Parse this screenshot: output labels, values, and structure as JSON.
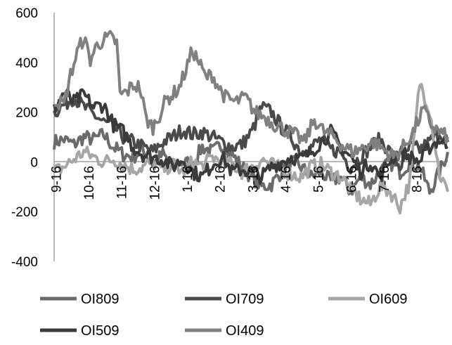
{
  "chart_data": {
    "type": "line",
    "title": "",
    "xlabel": "",
    "ylabel": "",
    "ylim": [
      -400,
      600
    ],
    "yticks": [
      600,
      400,
      200,
      0,
      -200,
      -400
    ],
    "grid": false,
    "legend_placement": "bottom",
    "xtick_labels": [
      "9-16",
      "10-16",
      "11-16",
      "12-16",
      "1-16",
      "2-16",
      "3-16",
      "4-16",
      "5-16",
      "6-16",
      "7-16",
      "8-16"
    ],
    "x_points": 240,
    "series": [
      {
        "name": "OI809",
        "color": "#6b6b6b",
        "values": [
          [
            0,
            80
          ],
          [
            6,
            90
          ],
          [
            12,
            70
          ],
          [
            18,
            100
          ],
          [
            24,
            90
          ],
          [
            30,
            110
          ],
          [
            36,
            60
          ],
          [
            42,
            30
          ],
          [
            48,
            20
          ],
          [
            54,
            50
          ],
          [
            60,
            -10
          ],
          [
            66,
            30
          ],
          [
            72,
            -20
          ],
          [
            78,
            0
          ],
          [
            84,
            -10
          ],
          [
            90,
            60
          ],
          [
            96,
            40
          ],
          [
            102,
            70
          ],
          [
            108,
            30
          ],
          [
            114,
            -20
          ],
          [
            120,
            -60
          ],
          [
            126,
            -100
          ],
          [
            132,
            -90
          ],
          [
            138,
            -40
          ],
          [
            144,
            0
          ],
          [
            150,
            -20
          ],
          [
            156,
            -60
          ],
          [
            162,
            -40
          ],
          [
            168,
            -80
          ],
          [
            174,
            -60
          ],
          [
            180,
            -120
          ],
          [
            186,
            -60
          ],
          [
            192,
            -90
          ],
          [
            198,
            -40
          ],
          [
            204,
            0
          ],
          [
            210,
            -40
          ],
          [
            216,
            0
          ],
          [
            222,
            -20
          ],
          [
            228,
            -120
          ],
          [
            234,
            -40
          ],
          [
            239,
            40
          ]
        ]
      },
      {
        "name": "OI709",
        "color": "#4a4a4a",
        "values": [
          [
            0,
            200
          ],
          [
            6,
            230
          ],
          [
            12,
            260
          ],
          [
            18,
            220
          ],
          [
            24,
            190
          ],
          [
            30,
            160
          ],
          [
            36,
            140
          ],
          [
            42,
            100
          ],
          [
            48,
            80
          ],
          [
            54,
            60
          ],
          [
            60,
            40
          ],
          [
            66,
            80
          ],
          [
            72,
            100
          ],
          [
            78,
            130
          ],
          [
            84,
            110
          ],
          [
            90,
            120
          ],
          [
            96,
            100
          ],
          [
            102,
            80
          ],
          [
            108,
            60
          ],
          [
            114,
            70
          ],
          [
            120,
            120
          ],
          [
            126,
            220
          ],
          [
            132,
            200
          ],
          [
            138,
            140
          ],
          [
            144,
            100
          ],
          [
            150,
            40
          ],
          [
            156,
            60
          ],
          [
            162,
            90
          ],
          [
            168,
            50
          ],
          [
            174,
            40
          ],
          [
            180,
            -20
          ],
          [
            186,
            20
          ],
          [
            192,
            60
          ],
          [
            198,
            90
          ],
          [
            204,
            40
          ],
          [
            210,
            -20
          ],
          [
            216,
            60
          ],
          [
            222,
            50
          ],
          [
            228,
            80
          ],
          [
            234,
            120
          ],
          [
            239,
            80
          ]
        ]
      },
      {
        "name": "OI609",
        "color": "#a6a6a6",
        "values": [
          [
            0,
            -40
          ],
          [
            6,
            -20
          ],
          [
            12,
            10
          ],
          [
            18,
            40
          ],
          [
            24,
            20
          ],
          [
            30,
            0
          ],
          [
            36,
            10
          ],
          [
            42,
            -10
          ],
          [
            48,
            -30
          ],
          [
            54,
            -20
          ],
          [
            60,
            0
          ],
          [
            66,
            -30
          ],
          [
            72,
            -10
          ],
          [
            78,
            -40
          ],
          [
            84,
            0
          ],
          [
            90,
            -20
          ],
          [
            96,
            20
          ],
          [
            102,
            0
          ],
          [
            108,
            -10
          ],
          [
            114,
            -40
          ],
          [
            120,
            -20
          ],
          [
            126,
            10
          ],
          [
            132,
            -10
          ],
          [
            138,
            -30
          ],
          [
            144,
            -50
          ],
          [
            150,
            -60
          ],
          [
            156,
            -20
          ],
          [
            162,
            -10
          ],
          [
            168,
            -40
          ],
          [
            174,
            -60
          ],
          [
            180,
            -110
          ],
          [
            186,
            -150
          ],
          [
            192,
            -170
          ],
          [
            198,
            -100
          ],
          [
            204,
            -120
          ],
          [
            210,
            -180
          ],
          [
            216,
            -80
          ],
          [
            222,
            320
          ],
          [
            228,
            210
          ],
          [
            234,
            -50
          ],
          [
            239,
            -120
          ]
        ]
      },
      {
        "name": "OI509",
        "color": "#3a3a3a",
        "values": [
          [
            0,
            210
          ],
          [
            6,
            280
          ],
          [
            12,
            240
          ],
          [
            18,
            270
          ],
          [
            24,
            220
          ],
          [
            30,
            230
          ],
          [
            36,
            150
          ],
          [
            42,
            120
          ],
          [
            48,
            60
          ],
          [
            54,
            30
          ],
          [
            60,
            20
          ],
          [
            66,
            10
          ],
          [
            72,
            -20
          ],
          [
            78,
            10
          ],
          [
            84,
            -40
          ],
          [
            90,
            -60
          ],
          [
            96,
            -10
          ],
          [
            102,
            20
          ],
          [
            108,
            -40
          ],
          [
            114,
            -30
          ],
          [
            120,
            -40
          ],
          [
            126,
            -60
          ],
          [
            132,
            -20
          ],
          [
            138,
            0
          ],
          [
            144,
            20
          ],
          [
            150,
            10
          ],
          [
            156,
            40
          ],
          [
            162,
            80
          ],
          [
            168,
            120
          ],
          [
            174,
            60
          ],
          [
            180,
            20
          ],
          [
            186,
            -40
          ],
          [
            192,
            0
          ],
          [
            198,
            -60
          ],
          [
            204,
            10
          ],
          [
            210,
            40
          ],
          [
            216,
            20
          ],
          [
            222,
            0
          ],
          [
            228,
            60
          ],
          [
            234,
            90
          ],
          [
            239,
            60
          ]
        ]
      },
      {
        "name": "OI409",
        "color": "#808080",
        "values": [
          [
            0,
            250
          ],
          [
            6,
            230
          ],
          [
            10,
            350
          ],
          [
            14,
            440
          ],
          [
            18,
            500
          ],
          [
            22,
            410
          ],
          [
            26,
            470
          ],
          [
            30,
            490
          ],
          [
            34,
            500
          ],
          [
            38,
            480
          ],
          [
            40,
            270
          ],
          [
            44,
            280
          ],
          [
            48,
            310
          ],
          [
            52,
            300
          ],
          [
            56,
            170
          ],
          [
            60,
            140
          ],
          [
            64,
            190
          ],
          [
            68,
            250
          ],
          [
            72,
            270
          ],
          [
            76,
            300
          ],
          [
            80,
            370
          ],
          [
            84,
            450
          ],
          [
            88,
            400
          ],
          [
            92,
            340
          ],
          [
            96,
            350
          ],
          [
            100,
            300
          ],
          [
            104,
            260
          ],
          [
            110,
            240
          ],
          [
            116,
            260
          ],
          [
            122,
            200
          ],
          [
            128,
            180
          ],
          [
            134,
            150
          ],
          [
            140,
            130
          ],
          [
            146,
            110
          ],
          [
            152,
            80
          ],
          [
            158,
            170
          ],
          [
            164,
            120
          ],
          [
            170,
            100
          ],
          [
            176,
            60
          ],
          [
            182,
            40
          ],
          [
            188,
            60
          ],
          [
            194,
            80
          ],
          [
            200,
            50
          ],
          [
            206,
            20
          ],
          [
            212,
            60
          ],
          [
            218,
            120
          ],
          [
            224,
            210
          ],
          [
            230,
            140
          ],
          [
            236,
            110
          ],
          [
            239,
            100
          ]
        ]
      }
    ]
  }
}
